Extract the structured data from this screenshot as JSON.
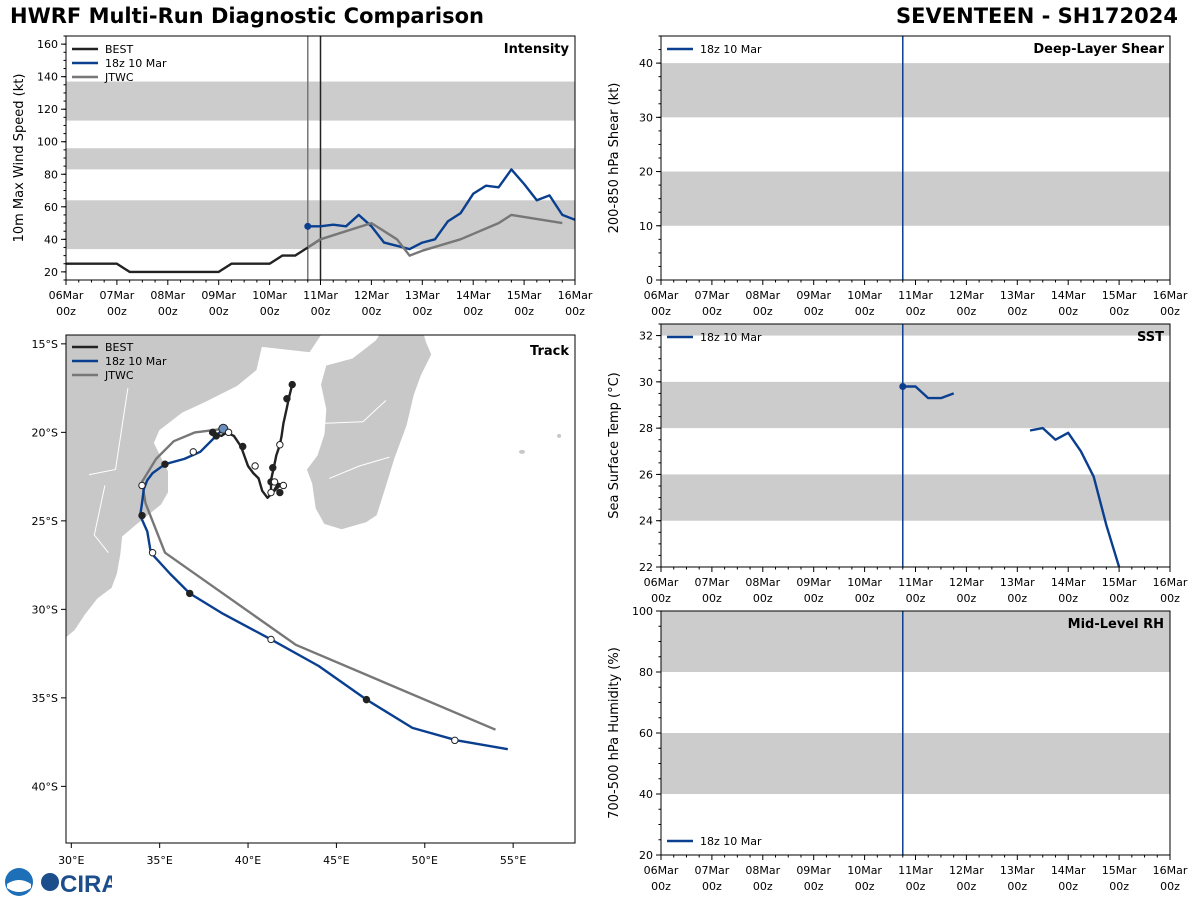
{
  "figure": {
    "title": "HWRF Multi-Run Diagnostic Comparison",
    "storm_label": "SEVENTEEN - SH172024",
    "logo_text": "CIRA"
  },
  "time_ticks": [
    "06Mar",
    "07Mar",
    "08Mar",
    "09Mar",
    "10Mar",
    "11Mar",
    "12Mar",
    "13Mar",
    "14Mar",
    "15Mar",
    "16Mar"
  ],
  "time_tick_sub": "00z",
  "colors": {
    "best": "#222222",
    "run": "#0a3f8f",
    "jtwc": "#777777",
    "band": "#cccccc",
    "land": "#c8c8c8"
  },
  "chart_data": [
    {
      "id": "intensity",
      "type": "line",
      "title": "Intensity",
      "ylabel": "10m Max Wind Speed (kt)",
      "xlim": [
        0,
        10
      ],
      "ylim": [
        15,
        165
      ],
      "yticks": [
        20,
        40,
        60,
        80,
        100,
        120,
        140,
        160
      ],
      "bands": [
        [
          34,
          64
        ],
        [
          83,
          96
        ],
        [
          113,
          137
        ]
      ],
      "vlines": [
        {
          "x": 4.75,
          "color": "#777777"
        },
        {
          "x": 5.0,
          "color": "#222222"
        }
      ],
      "legend": [
        "BEST",
        "18z 10 Mar",
        "JTWC"
      ],
      "series": [
        {
          "name": "BEST",
          "color": "#222222",
          "x": [
            0,
            0.25,
            0.5,
            0.75,
            1,
            1.25,
            1.5,
            1.75,
            2,
            2.25,
            2.5,
            2.75,
            3,
            3.25,
            3.5,
            3.75,
            4,
            4.25,
            4.5,
            4.75,
            5
          ],
          "y": [
            25,
            25,
            25,
            25,
            25,
            20,
            20,
            20,
            20,
            20,
            20,
            20,
            20,
            25,
            25,
            25,
            25,
            30,
            30,
            35,
            40
          ]
        },
        {
          "name": "18z 10 Mar",
          "color": "#0a3f8f",
          "marker_first": true,
          "x": [
            4.75,
            5,
            5.25,
            5.5,
            5.75,
            6,
            6.25,
            6.5,
            6.75,
            7,
            7.25,
            7.5,
            7.75,
            8,
            8.25,
            8.5,
            8.75,
            9,
            9.25,
            9.5,
            9.75,
            10
          ],
          "y": [
            48,
            48,
            49,
            48,
            55,
            48,
            38,
            36,
            34,
            38,
            40,
            51,
            56,
            68,
            73,
            72,
            83,
            74,
            64,
            67,
            55,
            52
          ]
        },
        {
          "name": "JTWC",
          "color": "#777777",
          "x": [
            4.75,
            5,
            5.5,
            6,
            6.5,
            6.75,
            7,
            7.75,
            8.5,
            8.75,
            9.75
          ],
          "y": [
            35,
            40,
            45,
            50,
            40,
            30,
            33,
            40,
            50,
            55,
            50
          ]
        }
      ]
    },
    {
      "id": "shear",
      "type": "line",
      "title": "Deep-Layer Shear",
      "ylabel": "200-850 hPa Shear (kt)",
      "xlim": [
        0,
        10
      ],
      "ylim": [
        0,
        45
      ],
      "yticks": [
        0,
        10,
        20,
        30,
        40
      ],
      "bands": [
        [
          10,
          20
        ],
        [
          30,
          40
        ]
      ],
      "vlines": [
        {
          "x": 4.75,
          "color": "#0a3f8f"
        }
      ],
      "legend": [
        "18z 10 Mar"
      ],
      "series": []
    },
    {
      "id": "sst",
      "type": "line",
      "title": "SST",
      "ylabel": "Sea Surface Temp (°C)",
      "xlim": [
        0,
        10
      ],
      "ylim": [
        22,
        32.5
      ],
      "yticks": [
        22,
        24,
        26,
        28,
        30,
        32
      ],
      "bands": [
        [
          24,
          26
        ],
        [
          28,
          30
        ],
        [
          32,
          34
        ]
      ],
      "vlines": [
        {
          "x": 4.75,
          "color": "#0a3f8f"
        }
      ],
      "legend": [
        "18z 10 Mar"
      ],
      "series": [
        {
          "name": "18z 10 Mar",
          "color": "#0a3f8f",
          "marker_first": true,
          "x": [
            4.75,
            5,
            5.25,
            5.5,
            5.75
          ],
          "y": [
            29.8,
            29.8,
            29.3,
            29.3,
            29.5
          ]
        },
        {
          "name": "18z 10 Mar",
          "color": "#0a3f8f",
          "x": [
            7.25,
            7.5,
            7.75,
            8,
            8.25,
            8.5,
            8.75,
            9
          ],
          "y": [
            27.9,
            28.0,
            27.5,
            27.8,
            27.0,
            25.9,
            23.8,
            22.0
          ]
        }
      ]
    },
    {
      "id": "rh",
      "type": "line",
      "title": "Mid-Level RH",
      "ylabel": "700-500 hPa Humidity (%)",
      "xlim": [
        0,
        10
      ],
      "ylim": [
        20,
        100
      ],
      "yticks": [
        20,
        40,
        60,
        80,
        100
      ],
      "bands": [
        [
          40,
          60
        ],
        [
          80,
          100
        ]
      ],
      "vlines": [
        {
          "x": 4.75,
          "color": "#0a3f8f"
        }
      ],
      "legend": [
        "18z 10 Mar"
      ],
      "series": []
    },
    {
      "id": "track",
      "type": "scatter",
      "title": "Track",
      "xlim": [
        29.7,
        58.5
      ],
      "ylim": [
        -43.2,
        -14.5
      ],
      "xticks": [
        30,
        35,
        40,
        45,
        50,
        55
      ],
      "xticklabels": [
        "30°E",
        "35°E",
        "40°E",
        "45°E",
        "50°E",
        "55°E"
      ],
      "yticks": [
        -15,
        -20,
        -25,
        -30,
        -35,
        -40
      ],
      "yticklabels": [
        "15°S",
        "20°S",
        "25°S",
        "30°S",
        "35°S",
        "40°S"
      ],
      "legend": [
        "BEST",
        "18z 10 Mar",
        "JTWC"
      ],
      "series": [
        {
          "name": "BEST",
          "color": "#222222",
          "lon": [
            42.5,
            42.3,
            42.2,
            42.0,
            41.9,
            41.8,
            41.6,
            41.5,
            41.3,
            41.3,
            41.5,
            41.8,
            42.0,
            41.7,
            41.4,
            41.1,
            40.8,
            40.6,
            40.3,
            40.0,
            39.6,
            39.2,
            38.8,
            38.5,
            38.1,
            37.8
          ],
          "lat": [
            -17.3,
            -18.1,
            -18.6,
            -19.5,
            -20.2,
            -20.7,
            -21.3,
            -21.8,
            -22.7,
            -23.3,
            -23.3,
            -23.0,
            -23.0,
            -22.9,
            -23.4,
            -23.7,
            -23.3,
            -22.6,
            -22.3,
            -21.9,
            -20.8,
            -20.2,
            -20.0,
            -20.2,
            -20.1,
            -20.0
          ],
          "markers": [
            [
              42.5,
              -17.3,
              "f"
            ],
            [
              42.2,
              -18.1,
              "f"
            ],
            [
              41.8,
              -20.7,
              "o"
            ],
            [
              41.4,
              -22.0,
              "f"
            ],
            [
              41.3,
              -22.8,
              "f"
            ],
            [
              41.5,
              -22.8,
              "o"
            ],
            [
              42.0,
              -23.0,
              "o"
            ],
            [
              41.8,
              -23.4,
              "f"
            ],
            [
              41.3,
              -23.4,
              "o"
            ],
            [
              40.4,
              -21.9,
              "o"
            ],
            [
              39.7,
              -20.8,
              "f"
            ],
            [
              38.9,
              -20.0,
              "o"
            ],
            [
              38.2,
              -20.2,
              "f"
            ],
            [
              38.0,
              -20.0,
              "f"
            ]
          ]
        },
        {
          "name": "18z 10 Mar",
          "color": "#0a3f8f",
          "lon": [
            38.6,
            38.0,
            37.3,
            36.4,
            35.3,
            34.6,
            34.3,
            34.1,
            34.0,
            33.9,
            34.3,
            34.5,
            35.6,
            36.7,
            38.5,
            41.3,
            44.0,
            46.7,
            49.3,
            51.8,
            54.7
          ],
          "lat": [
            -19.8,
            -20.4,
            -21.1,
            -21.5,
            -21.8,
            -22.3,
            -22.7,
            -23.2,
            -24.0,
            -24.7,
            -25.6,
            -26.8,
            -28.0,
            -29.1,
            -30.2,
            -31.7,
            -33.2,
            -35.1,
            -36.7,
            -37.4,
            -37.9
          ],
          "markers": [
            [
              38.6,
              -19.8,
              "big"
            ],
            [
              36.9,
              -21.1,
              "o"
            ],
            [
              35.3,
              -21.8,
              "f"
            ],
            [
              34.0,
              -23.0,
              "o"
            ],
            [
              34.0,
              -24.7,
              "f"
            ],
            [
              34.6,
              -26.8,
              "o"
            ],
            [
              36.7,
              -29.1,
              "f"
            ],
            [
              41.3,
              -31.7,
              "o"
            ],
            [
              46.7,
              -35.1,
              "f"
            ],
            [
              51.7,
              -37.4,
              "o"
            ]
          ]
        },
        {
          "name": "JTWC",
          "color": "#777777",
          "lon": [
            38.6,
            37.0,
            35.8,
            34.8,
            34.0,
            34.2,
            35.3,
            42.7,
            54.0
          ],
          "lat": [
            -19.8,
            -20.0,
            -20.5,
            -21.5,
            -22.8,
            -24.0,
            -26.8,
            -32.0,
            -36.8
          ],
          "markers": []
        }
      ]
    }
  ]
}
